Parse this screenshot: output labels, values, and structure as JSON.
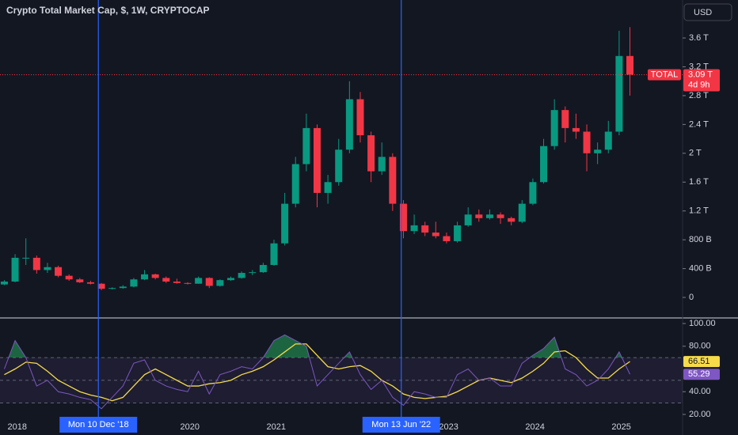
{
  "currency_button": "USD",
  "chart_data": [
    {
      "type": "candlestick",
      "title": "Crypto Total Market Cap, $, 1W, CRYPTOCAP",
      "x": [
        2017.85,
        2017.975,
        2018.1,
        2018.225,
        2018.35,
        2018.475,
        2018.6,
        2018.725,
        2018.85,
        2018.975,
        2019.1,
        2019.225,
        2019.35,
        2019.475,
        2019.6,
        2019.725,
        2019.85,
        2019.975,
        2020.1,
        2020.225,
        2020.35,
        2020.475,
        2020.6,
        2020.725,
        2020.85,
        2020.975,
        2021.1,
        2021.225,
        2021.35,
        2021.475,
        2021.6,
        2021.725,
        2021.85,
        2021.975,
        2022.1,
        2022.225,
        2022.35,
        2022.475,
        2022.6,
        2022.725,
        2022.85,
        2022.975,
        2023.1,
        2023.225,
        2023.35,
        2023.475,
        2023.6,
        2023.725,
        2023.85,
        2023.975,
        2024.1,
        2024.225,
        2024.35,
        2024.475,
        2024.6,
        2024.725,
        2024.85,
        2024.975,
        2025.1
      ],
      "open": [
        0.18,
        0.22,
        0.55,
        0.55,
        0.38,
        0.42,
        0.3,
        0.25,
        0.21,
        0.19,
        0.12,
        0.13,
        0.15,
        0.25,
        0.32,
        0.27,
        0.22,
        0.2,
        0.19,
        0.27,
        0.16,
        0.24,
        0.27,
        0.34,
        0.35,
        0.45,
        0.75,
        1.3,
        1.85,
        2.35,
        1.45,
        1.6,
        2.05,
        2.75,
        2.25,
        1.75,
        1.95,
        1.3,
        0.92,
        1.0,
        0.9,
        0.85,
        0.78,
        1.0,
        1.15,
        1.1,
        1.15,
        1.1,
        1.05,
        1.3,
        1.6,
        2.1,
        2.6,
        2.35,
        2.3,
        2.0,
        2.05,
        2.3,
        3.35
      ],
      "high": [
        0.24,
        0.6,
        0.82,
        0.58,
        0.48,
        0.44,
        0.32,
        0.27,
        0.23,
        0.2,
        0.14,
        0.17,
        0.27,
        0.38,
        0.33,
        0.29,
        0.26,
        0.21,
        0.29,
        0.28,
        0.25,
        0.29,
        0.36,
        0.38,
        0.48,
        0.8,
        1.45,
        1.95,
        2.55,
        2.4,
        1.7,
        2.2,
        3.0,
        2.85,
        2.3,
        2.15,
        2.0,
        1.35,
        1.15,
        1.05,
        1.05,
        0.9,
        1.05,
        1.25,
        1.22,
        1.22,
        1.18,
        1.12,
        1.35,
        1.65,
        2.2,
        2.75,
        2.65,
        2.55,
        2.4,
        2.15,
        2.45,
        3.7,
        3.75
      ],
      "low": [
        0.17,
        0.21,
        0.45,
        0.33,
        0.34,
        0.28,
        0.23,
        0.2,
        0.18,
        0.1,
        0.11,
        0.12,
        0.14,
        0.24,
        0.25,
        0.2,
        0.19,
        0.18,
        0.19,
        0.13,
        0.15,
        0.23,
        0.26,
        0.31,
        0.34,
        0.44,
        0.72,
        1.25,
        1.75,
        1.25,
        1.3,
        1.55,
        2.0,
        2.15,
        1.6,
        1.7,
        1.2,
        0.82,
        0.88,
        0.85,
        0.82,
        0.75,
        0.76,
        0.98,
        1.05,
        1.08,
        1.02,
        1.0,
        1.03,
        1.28,
        1.58,
        2.05,
        2.15,
        2.2,
        1.75,
        1.85,
        2.0,
        2.25,
        2.8
      ],
      "close": [
        0.22,
        0.55,
        0.55,
        0.38,
        0.42,
        0.3,
        0.25,
        0.21,
        0.19,
        0.12,
        0.13,
        0.15,
        0.25,
        0.32,
        0.27,
        0.22,
        0.2,
        0.19,
        0.27,
        0.16,
        0.24,
        0.27,
        0.34,
        0.35,
        0.45,
        0.75,
        1.3,
        1.85,
        2.35,
        1.45,
        1.6,
        2.05,
        2.75,
        2.25,
        1.75,
        1.95,
        1.3,
        0.92,
        1.0,
        0.9,
        0.85,
        0.78,
        1.0,
        1.15,
        1.1,
        1.15,
        1.1,
        1.05,
        1.3,
        1.6,
        2.1,
        2.6,
        2.35,
        2.3,
        2.0,
        2.05,
        2.3,
        3.35,
        3.09
      ],
      "up_color": "#089981",
      "down_color": "#f23645",
      "xlim": [
        2017.8,
        2025.71
      ],
      "xticks": [
        2018,
        2020,
        2021,
        2023,
        2024,
        2025
      ],
      "ylim": [
        -0.263,
        4.127
      ],
      "yticks": [
        0,
        {
          "value": 0.4,
          "label": "400 B"
        },
        {
          "value": 0.8,
          "label": "800 B"
        },
        {
          "value": 1.2,
          "label": "1.2 T"
        },
        {
          "value": 1.6,
          "label": "1.6 T"
        },
        {
          "value": 2,
          "label": "2 T"
        },
        {
          "value": 2.4,
          "label": "2.4 T"
        },
        {
          "value": 2.8,
          "label": "2.8 T"
        },
        {
          "value": 3.2,
          "label": "3.2 T"
        },
        {
          "value": 3.6,
          "label": "3.6 T"
        }
      ],
      "price_line": {
        "name": "TOTAL",
        "value": 3.09,
        "label": "3.09 T",
        "countdown": "4d 9h",
        "color": "#f23645"
      },
      "markers": [
        {
          "x": 2018.94,
          "label": "Mon 10 Dec '18"
        },
        {
          "x": 2022.45,
          "label": "Mon 13 Jun '22"
        }
      ],
      "marker_color": "#2962ff"
    },
    {
      "type": "line",
      "x": [
        2017.85,
        2017.975,
        2018.1,
        2018.225,
        2018.35,
        2018.475,
        2018.6,
        2018.725,
        2018.85,
        2018.975,
        2019.1,
        2019.225,
        2019.35,
        2019.475,
        2019.6,
        2019.725,
        2019.85,
        2019.975,
        2020.1,
        2020.225,
        2020.35,
        2020.475,
        2020.6,
        2020.725,
        2020.85,
        2020.975,
        2021.1,
        2021.225,
        2021.35,
        2021.475,
        2021.6,
        2021.725,
        2021.85,
        2021.975,
        2022.1,
        2022.225,
        2022.35,
        2022.475,
        2022.6,
        2022.725,
        2022.85,
        2022.975,
        2023.1,
        2023.225,
        2023.35,
        2023.475,
        2023.6,
        2023.725,
        2023.85,
        2023.975,
        2024.1,
        2024.225,
        2024.35,
        2024.475,
        2024.6,
        2024.725,
        2024.85,
        2024.975,
        2025.1
      ],
      "series": [
        {
          "color": "#f7dc4a",
          "values": [
            55,
            60,
            66,
            65,
            58,
            50,
            45,
            40,
            37,
            35,
            32,
            35,
            45,
            55,
            60,
            55,
            50,
            45,
            45,
            47,
            48,
            50,
            55,
            58,
            62,
            68,
            75,
            82,
            82,
            72,
            62,
            60,
            62,
            63,
            58,
            50,
            45,
            38,
            35,
            34,
            35,
            36,
            40,
            45,
            50,
            52,
            50,
            48,
            52,
            58,
            65,
            75,
            76,
            70,
            60,
            52,
            52,
            60,
            66.51
          ],
          "value_label": "66.51"
        },
        {
          "color": "#7e57c2",
          "values": [
            60,
            85,
            70,
            45,
            50,
            40,
            38,
            35,
            33,
            25,
            35,
            45,
            65,
            68,
            50,
            45,
            42,
            40,
            58,
            38,
            55,
            58,
            62,
            60,
            70,
            85,
            90,
            85,
            80,
            45,
            55,
            65,
            75,
            55,
            42,
            50,
            35,
            28,
            40,
            38,
            35,
            35,
            55,
            60,
            50,
            52,
            45,
            45,
            65,
            72,
            78,
            88,
            60,
            55,
            45,
            50,
            60,
            75,
            55.29
          ],
          "value_label": "55.29"
        }
      ],
      "ylim": [
        15.8,
        104.9
      ],
      "yticks": [
        {
          "value": 100,
          "label": "100.00"
        },
        {
          "value": 80,
          "label": "80.00"
        },
        {
          "value": 40,
          "label": "40.00"
        },
        {
          "value": 20,
          "label": "20.00"
        }
      ],
      "band": [
        30,
        70
      ],
      "hlines": [
        70,
        50,
        30
      ],
      "overbought_color": "#26a65b"
    }
  ]
}
